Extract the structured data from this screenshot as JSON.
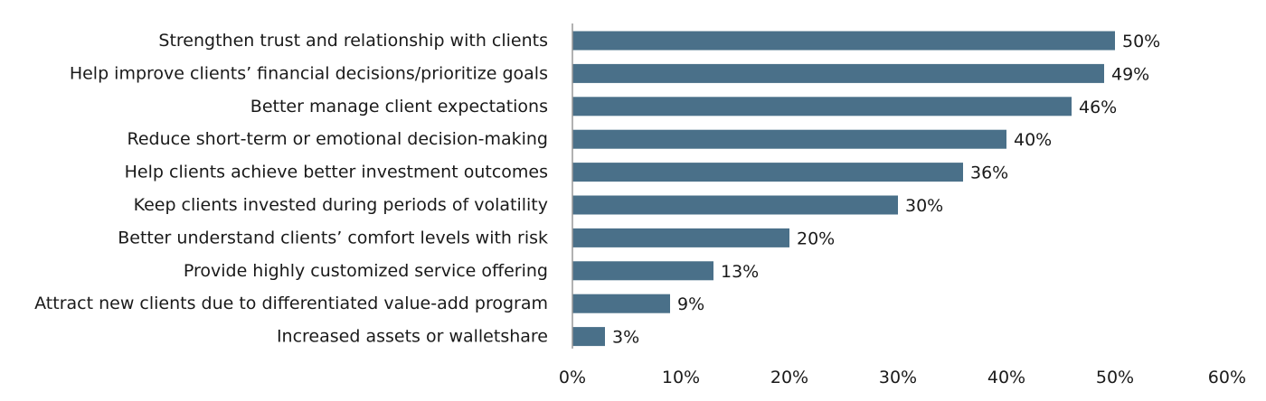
{
  "chart_data": {
    "type": "bar",
    "orientation": "horizontal",
    "categories": [
      "Strengthen trust and relationship with clients",
      "Help improve clients’ financial decisions/prioritize goals",
      "Better manage client expectations",
      "Reduce short-term or emotional decision-making",
      "Help clients achieve better investment outcomes",
      "Keep clients invested during periods of volatility",
      "Better understand clients’ comfort levels with risk",
      "Provide highly customized service offering",
      "Attract new clients due to differentiated value-add program",
      "Increased assets or walletshare"
    ],
    "values": [
      50,
      49,
      46,
      40,
      36,
      30,
      20,
      13,
      9,
      3
    ],
    "value_labels": [
      "50%",
      "49%",
      "46%",
      "40%",
      "36%",
      "30%",
      "20%",
      "13%",
      "9%",
      "3%"
    ],
    "xlim": [
      0,
      60
    ],
    "xticks": [
      0,
      10,
      20,
      30,
      40,
      50,
      60
    ],
    "xtick_labels": [
      "0%",
      "10%",
      "20%",
      "30%",
      "40%",
      "50%",
      "60%"
    ],
    "title": "",
    "xlabel": "",
    "ylabel": "",
    "grid": false,
    "legend": "none",
    "bar_color": "#4a7089",
    "axis_color": "#999999"
  }
}
